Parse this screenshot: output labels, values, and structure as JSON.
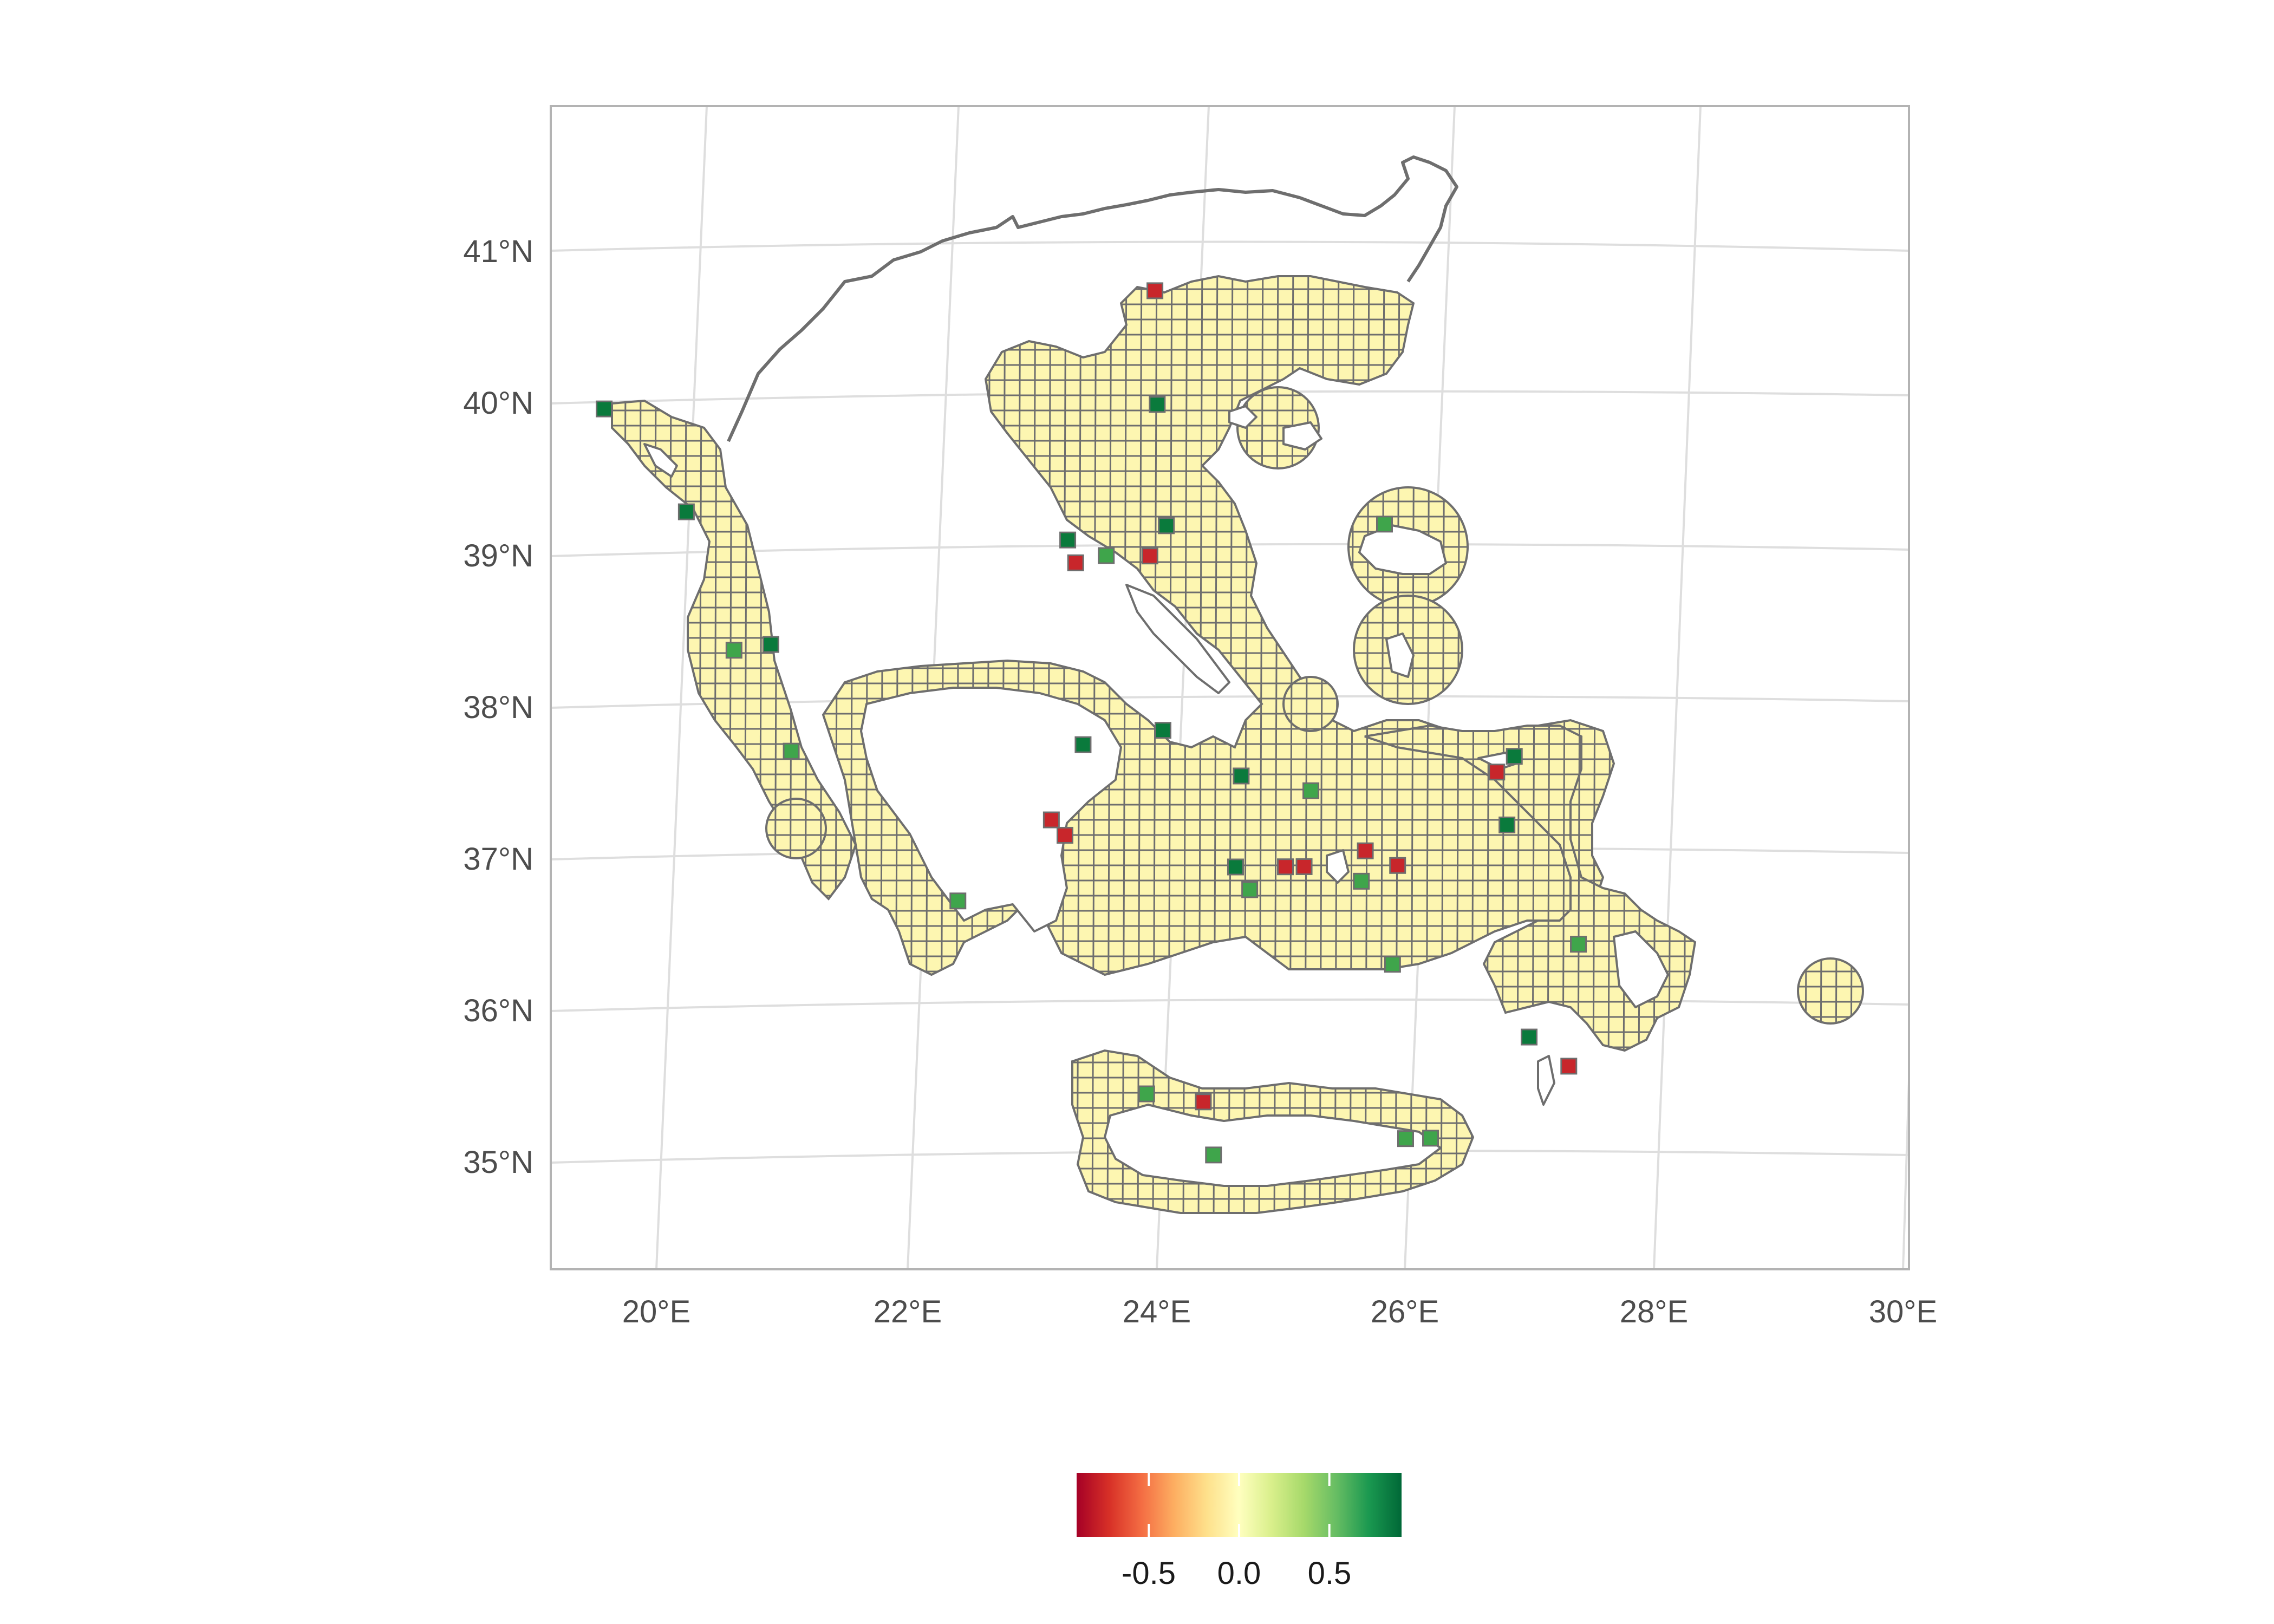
{
  "chart_data": {
    "type": "map",
    "title": "",
    "subtitle": "",
    "xlabel": "",
    "ylabel": "",
    "xlim": [
      19.2,
      30.0
    ],
    "ylim": [
      34.3,
      42.0
    ],
    "lon_ticks": [
      "20°E",
      "22°E",
      "24°E",
      "26°E",
      "28°E",
      "30°E"
    ],
    "lat_ticks": [
      "41°N",
      "40°N",
      "39°N",
      "38°N",
      "37°N",
      "36°N",
      "35°N"
    ],
    "colors": {
      "sea_cell": "#fdf6b1",
      "positive_strong": "#0a7a3c",
      "positive_mid": "#3fa54b",
      "negative_strong": "#c8262b",
      "outline": "#6e6e6e",
      "graticule": "#dedede"
    },
    "highlighted_cells": [
      {
        "lon": 19.75,
        "lat": 39.85,
        "value": 0.9
      },
      {
        "lon": 20.35,
        "lat": 39.2,
        "value": 0.9
      },
      {
        "lon": 20.65,
        "lat": 38.3,
        "value": 0.7
      },
      {
        "lon": 20.95,
        "lat": 38.35,
        "value": 0.9
      },
      {
        "lon": 21.05,
        "lat": 37.65,
        "value": 0.8
      },
      {
        "lon": 22.3,
        "lat": 36.7,
        "value": 0.7
      },
      {
        "lon": 23.1,
        "lat": 37.25,
        "value": -0.8
      },
      {
        "lon": 23.2,
        "lat": 37.15,
        "value": -0.7
      },
      {
        "lon": 23.4,
        "lat": 37.75,
        "value": 0.9
      },
      {
        "lon": 23.4,
        "lat": 39.1,
        "value": 0.9
      },
      {
        "lon": 23.45,
        "lat": 38.95,
        "value": -0.9
      },
      {
        "lon": 23.7,
        "lat": 39.0,
        "value": 0.7
      },
      {
        "lon": 24.05,
        "lat": 39.0,
        "value": -0.8
      },
      {
        "lon": 24.2,
        "lat": 39.2,
        "value": 0.9
      },
      {
        "lon": 24.2,
        "lat": 40.0,
        "value": 0.9
      },
      {
        "lon": 24.25,
        "lat": 40.75,
        "value": -0.8
      },
      {
        "lon": 24.05,
        "lat": 37.85,
        "value": 0.9
      },
      {
        "lon": 24.65,
        "lat": 37.55,
        "value": 0.9
      },
      {
        "lon": 24.55,
        "lat": 36.95,
        "value": 0.9
      },
      {
        "lon": 24.65,
        "lat": 36.8,
        "value": 0.8
      },
      {
        "lon": 25.2,
        "lat": 37.45,
        "value": 0.8
      },
      {
        "lon": 24.95,
        "lat": 36.95,
        "value": -0.8
      },
      {
        "lon": 25.1,
        "lat": 36.95,
        "value": -0.7
      },
      {
        "lon": 25.6,
        "lat": 37.05,
        "value": -0.6
      },
      {
        "lon": 25.85,
        "lat": 36.95,
        "value": -0.7
      },
      {
        "lon": 25.55,
        "lat": 36.85,
        "value": 0.8
      },
      {
        "lon": 25.75,
        "lat": 36.3,
        "value": 0.7
      },
      {
        "lon": 25.95,
        "lat": 39.2,
        "value": 0.8
      },
      {
        "lon": 26.7,
        "lat": 37.55,
        "value": -0.8
      },
      {
        "lon": 26.75,
        "lat": 37.2,
        "value": 0.9
      },
      {
        "lon": 26.85,
        "lat": 37.65,
        "value": 0.9
      },
      {
        "lon": 26.8,
        "lat": 35.8,
        "value": 0.9
      },
      {
        "lon": 27.1,
        "lat": 35.6,
        "value": -0.8
      },
      {
        "lon": 27.25,
        "lat": 36.4,
        "value": 0.7
      },
      {
        "lon": 24.15,
        "lat": 35.4,
        "value": -0.6
      },
      {
        "lon": 23.7,
        "lat": 35.45,
        "value": 0.7
      },
      {
        "lon": 24.2,
        "lat": 35.05,
        "value": 0.8
      },
      {
        "lon": 25.75,
        "lat": 35.15,
        "value": 0.8
      },
      {
        "lon": 25.95,
        "lat": 35.15,
        "value": 0.7
      }
    ],
    "legend": {
      "placement": "bottom",
      "type": "colorbar",
      "range": [
        -0.9,
        0.9
      ],
      "ticks": [
        -0.5,
        0.0,
        0.5
      ],
      "tick_labels": [
        "-0.5",
        "0.0",
        "0.5"
      ],
      "palette": [
        "#a50026",
        "#d73027",
        "#f46d43",
        "#fdae61",
        "#fee08b",
        "#ffffbf",
        "#d9ef8b",
        "#a6d96a",
        "#66bd63",
        "#1a9850",
        "#006837"
      ]
    }
  }
}
